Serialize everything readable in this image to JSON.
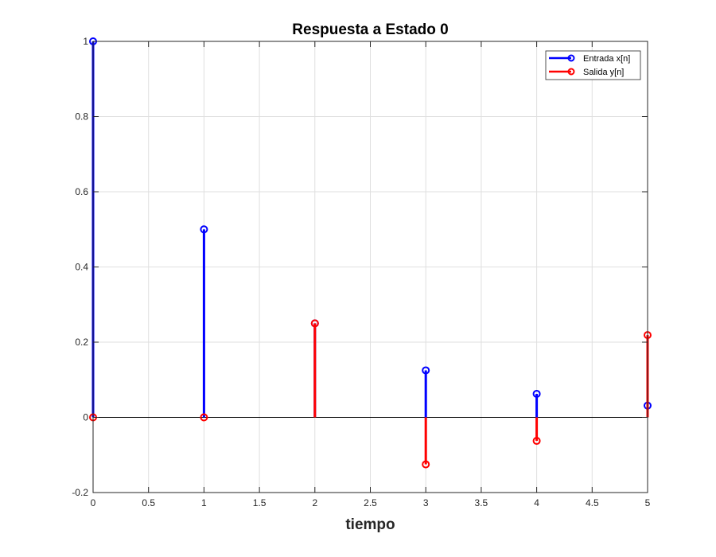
{
  "chart_data": {
    "type": "stem",
    "title": "Respuesta a Estado 0",
    "xlabel": "tiempo",
    "ylabel": "",
    "xlim": [
      0,
      5
    ],
    "ylim": [
      -0.2,
      1
    ],
    "xticks": [
      0,
      0.5,
      1,
      1.5,
      2,
      2.5,
      3,
      3.5,
      4,
      4.5,
      5
    ],
    "xtick_labels": [
      "0",
      "0.5",
      "1",
      "1.5",
      "2",
      "2.5",
      "3",
      "3.5",
      "4",
      "4.5",
      "5"
    ],
    "yticks": [
      -0.2,
      0,
      0.2,
      0.4,
      0.6,
      0.8,
      1
    ],
    "ytick_labels": [
      "-0.2",
      "0",
      "0.2",
      "0.4",
      "0.6",
      "0.8",
      "1"
    ],
    "grid": true,
    "legend_position": "top-right",
    "series": [
      {
        "name": "Entrada x[n]",
        "color": "#0000ff",
        "x": [
          0,
          1,
          2,
          3,
          4,
          5
        ],
        "y": [
          1,
          0.5,
          0.25,
          0.125,
          0.0625,
          0.03125
        ]
      },
      {
        "name": "Salida y[n]",
        "color": "#ff0000",
        "x": [
          0,
          1,
          2,
          3,
          4,
          5
        ],
        "y": [
          0,
          0,
          0.25,
          -0.125,
          -0.0625,
          0.21875
        ]
      }
    ]
  }
}
